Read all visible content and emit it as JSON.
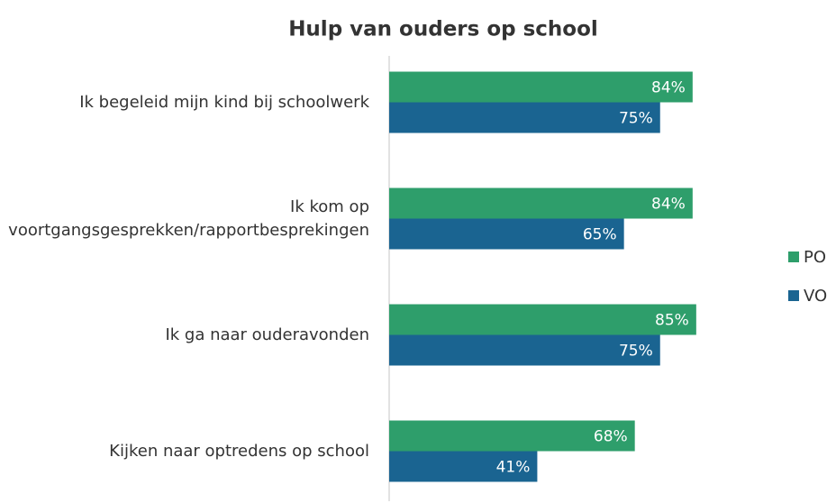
{
  "chart_data": {
    "type": "barh",
    "title": "Hulp van ouders op school",
    "categories": [
      "Ik begeleid mijn kind bij schoolwerk",
      "Ik kom op voortgangsgesprekken/rapportbesprekingen",
      "Ik ga naar ouderavonden",
      "Kijken naar optredens op school"
    ],
    "series": [
      {
        "name": "PO",
        "color": "#2e9e6b",
        "values": [
          84,
          84,
          85,
          68
        ],
        "value_labels": [
          "84%",
          "84%",
          "85%",
          "68%"
        ]
      },
      {
        "name": "VO",
        "color": "#1a6491",
        "values": [
          75,
          65,
          75,
          41
        ],
        "value_labels": [
          "75%",
          "65%",
          "75%",
          "41%"
        ]
      }
    ],
    "xlim": [
      0,
      100
    ]
  }
}
